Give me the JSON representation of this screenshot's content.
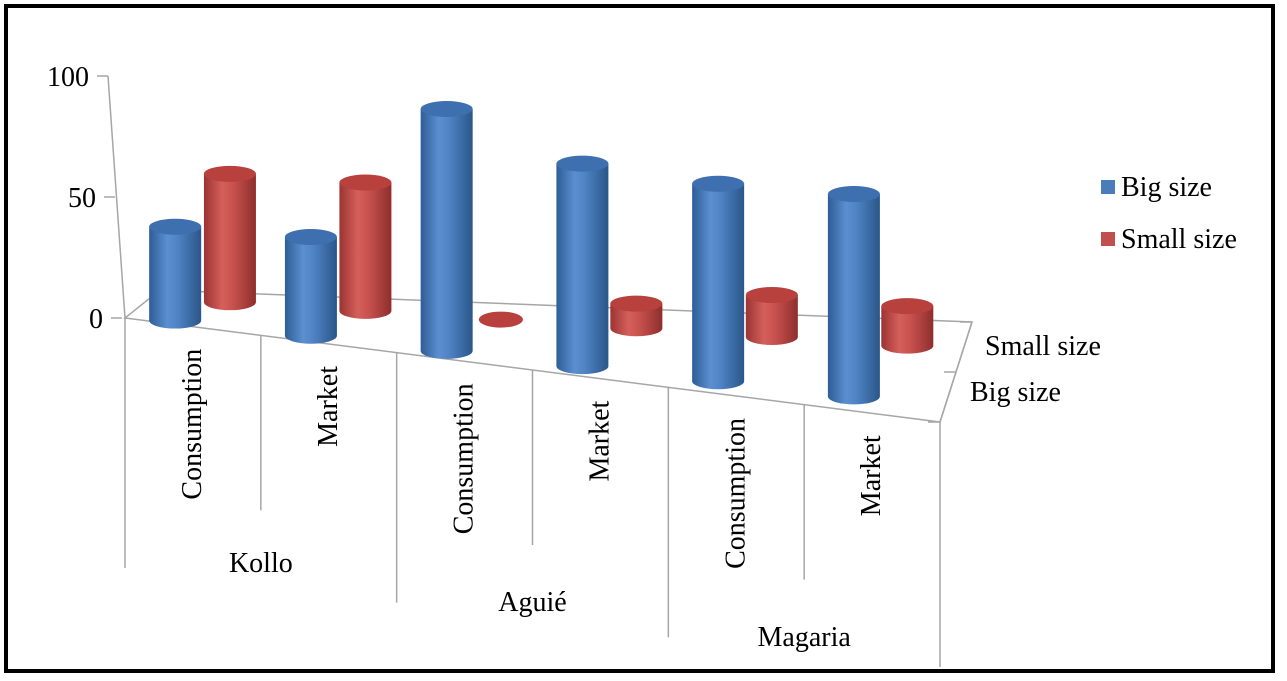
{
  "colors": {
    "big": "#4a7ebb",
    "small": "#c0504d"
  },
  "chart_data": {
    "type": "bar",
    "style": "3d-cylinder",
    "y_ticks": [
      "100",
      "50",
      "0"
    ],
    "ylim": [
      0,
      100
    ],
    "depth_ticks": [
      "Small size",
      "Big size"
    ],
    "groups": [
      {
        "name": "Kollo",
        "subcategories": [
          "Consumption",
          "Market"
        ]
      },
      {
        "name": "Aguié",
        "subcategories": [
          "Consumption",
          "Market"
        ]
      },
      {
        "name": "Magaria",
        "subcategories": [
          "Consumption",
          "Market"
        ]
      }
    ],
    "series": [
      {
        "name": "Big size",
        "values": [
          38,
          40,
          98,
          82,
          80,
          82
        ]
      },
      {
        "name": "Small size",
        "values": [
          52,
          52,
          0,
          10,
          17,
          16
        ]
      }
    ],
    "legend": {
      "position": "right",
      "items": [
        "Big size",
        "Small size"
      ]
    },
    "grid": false
  }
}
